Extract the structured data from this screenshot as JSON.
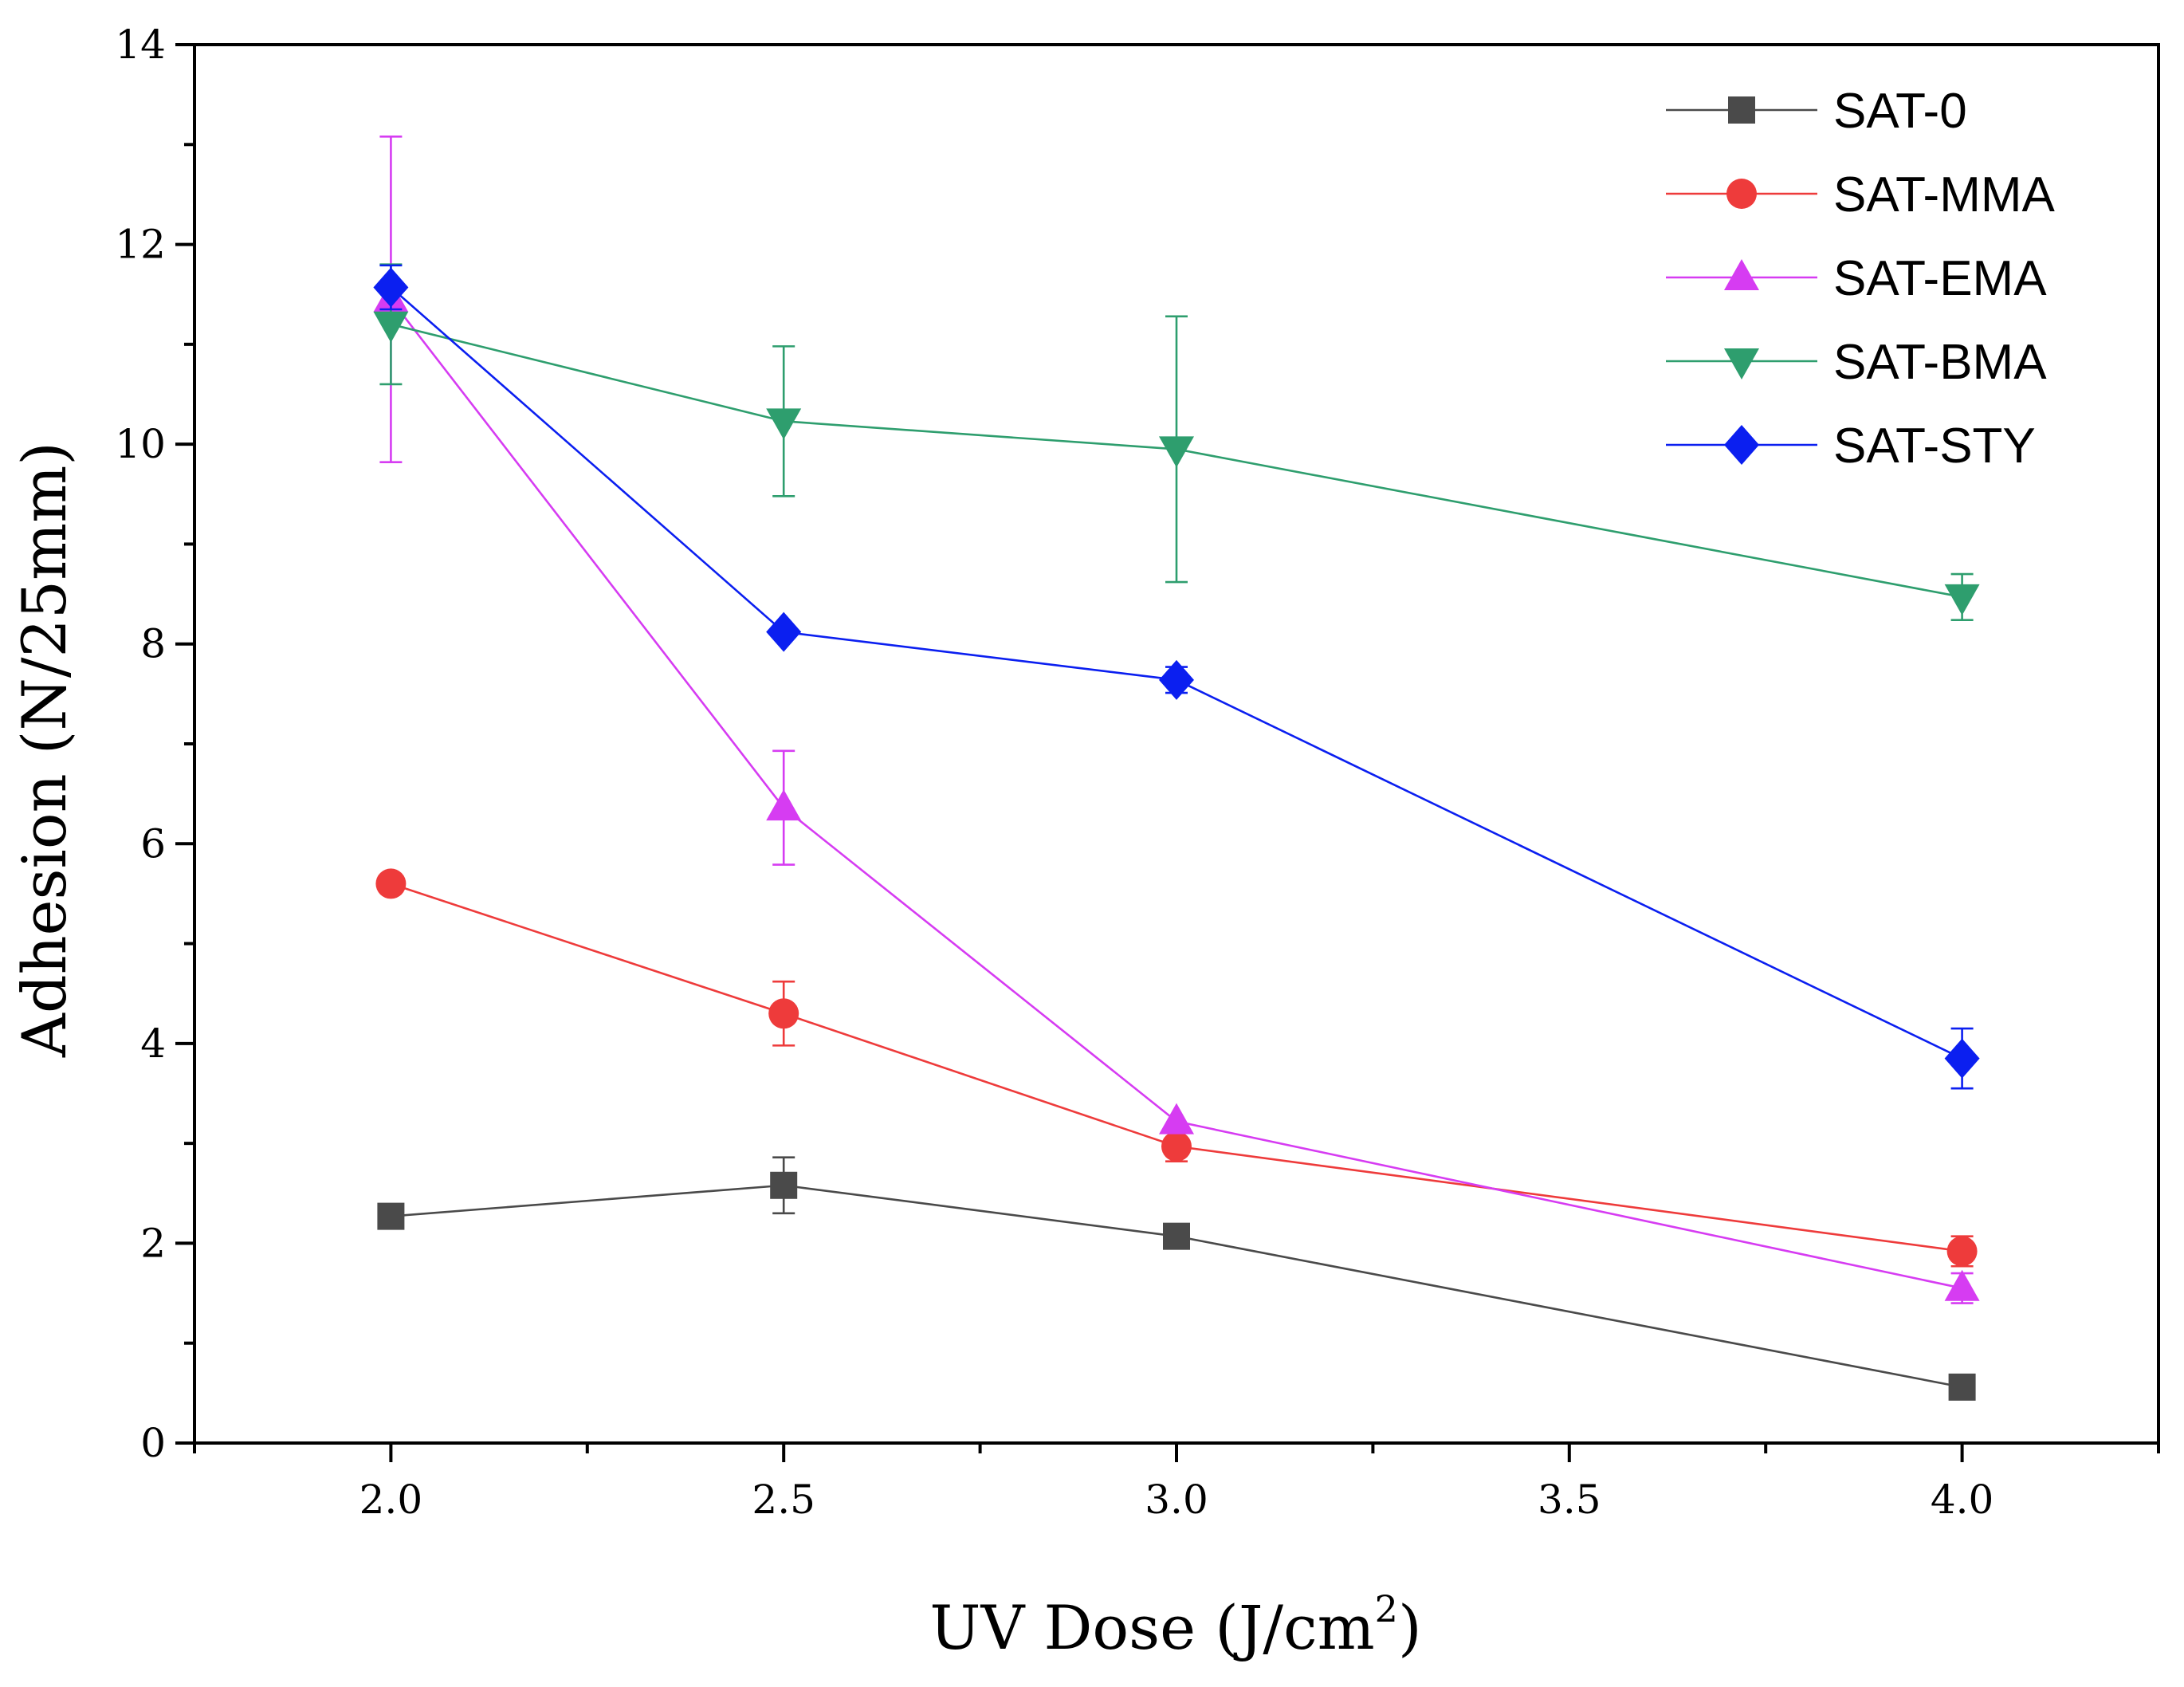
{
  "chart_data": {
    "type": "line",
    "title": "",
    "xlabel": "UV Dose (J/cm",
    "xlabel_superscript": "2",
    "xlabel_close": ")",
    "ylabel": "Adhesion (N/25mm)",
    "xlim": [
      1.75,
      4.25
    ],
    "ylim": [
      0,
      14
    ],
    "x_ticks": [
      2.0,
      2.5,
      3.0,
      3.5,
      4.0
    ],
    "x_tick_labels": [
      "2.0",
      "2.5",
      "3.0",
      "3.5",
      "4.0"
    ],
    "y_ticks": [
      0,
      2,
      4,
      6,
      8,
      10,
      12,
      14
    ],
    "y_tick_labels": [
      "0",
      "2",
      "4",
      "6",
      "8",
      "10",
      "12",
      "14"
    ],
    "grid": false,
    "legend_position": "top-right",
    "series": [
      {
        "name": "SAT-0",
        "color": "#4a4a4a",
        "marker": "square",
        "points": [
          {
            "x": 2.0,
            "y": 2.27,
            "err": 0.05
          },
          {
            "x": 2.5,
            "y": 2.58,
            "err": 0.28
          },
          {
            "x": 3.0,
            "y": 2.07,
            "err": 0.05
          },
          {
            "x": 4.0,
            "y": 0.56,
            "err": 0.05
          }
        ]
      },
      {
        "name": "SAT-MMA",
        "color": "#ee3b3b",
        "marker": "circle",
        "points": [
          {
            "x": 2.0,
            "y": 5.6,
            "err": 0.05
          },
          {
            "x": 2.5,
            "y": 4.3,
            "err": 0.32
          },
          {
            "x": 3.0,
            "y": 2.97,
            "err": 0.15
          },
          {
            "x": 4.0,
            "y": 1.92,
            "err": 0.15
          }
        ]
      },
      {
        "name": "SAT-EMA",
        "color": "#d63cf2",
        "marker": "triangle-up",
        "points": [
          {
            "x": 2.0,
            "y": 11.45,
            "err": 1.63
          },
          {
            "x": 2.5,
            "y": 6.36,
            "err": 0.57
          },
          {
            "x": 3.0,
            "y": 3.22,
            "err": 0.05
          },
          {
            "x": 4.0,
            "y": 1.55,
            "err": 0.15
          }
        ]
      },
      {
        "name": "SAT-BMA",
        "color": "#2e9e6e",
        "marker": "triangle-down",
        "points": [
          {
            "x": 2.0,
            "y": 11.2,
            "err": 0.6
          },
          {
            "x": 2.5,
            "y": 10.23,
            "err": 0.75
          },
          {
            "x": 3.0,
            "y": 9.95,
            "err": 1.33
          },
          {
            "x": 4.0,
            "y": 8.47,
            "err": 0.23
          }
        ]
      },
      {
        "name": "SAT-STY",
        "color": "#0b1ff0",
        "marker": "diamond",
        "points": [
          {
            "x": 2.0,
            "y": 11.57,
            "err": 0.22
          },
          {
            "x": 2.5,
            "y": 8.12,
            "err": 0.05
          },
          {
            "x": 3.0,
            "y": 7.64,
            "err": 0.13
          },
          {
            "x": 4.0,
            "y": 3.85,
            "err": 0.3
          }
        ]
      }
    ]
  }
}
